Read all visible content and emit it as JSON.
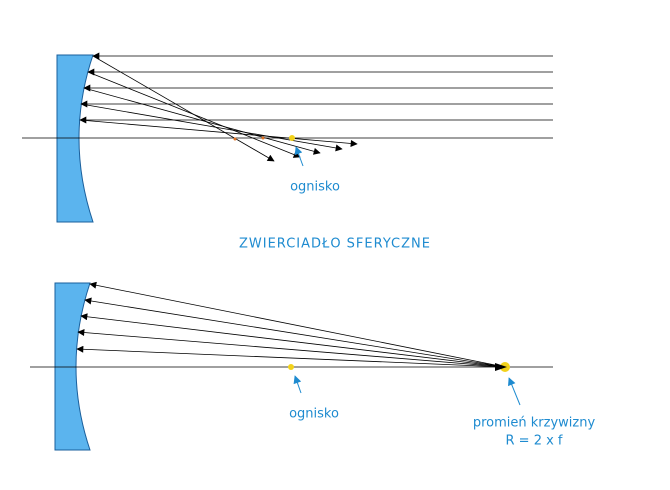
{
  "title": "ZWIERCIADŁO SFERYCZNE",
  "top_diagram": {
    "focus_label": "ognisko"
  },
  "bottom_diagram": {
    "focus_label": "ognisko",
    "radius_label": [
      "promień krzywizny",
      "R = 2 x f"
    ]
  }
}
